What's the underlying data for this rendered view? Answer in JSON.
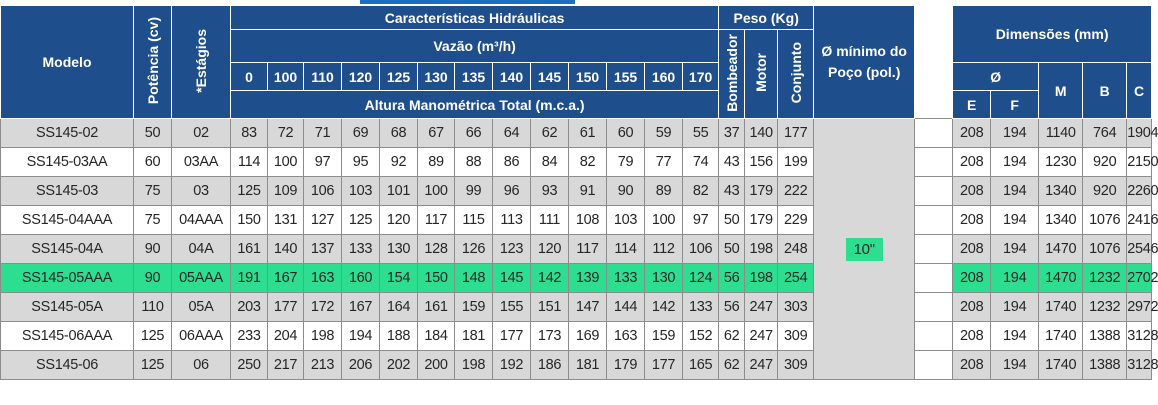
{
  "header": {
    "modelo": "Modelo",
    "potencia": "Potência (cv)",
    "estagios": "*Estágios",
    "hidraulicas": "Características Hidráulicas",
    "vazao": "Vazão (m³/h)",
    "altura": "Altura Manométrica Total (m.c.a.)",
    "flows": [
      "0",
      "100",
      "110",
      "120",
      "125",
      "130",
      "135",
      "140",
      "145",
      "150",
      "155",
      "160",
      "170"
    ],
    "peso": "Peso (Kg)",
    "bombeador": "Bombeador",
    "motor": "Motor",
    "conjunto": "Conjunto",
    "poco": "Ø mínimo do Poço (pol.)",
    "dimensoes": "Dimensões (mm)",
    "diam": "Ø",
    "e": "E",
    "f": "F",
    "m": "M",
    "b": "B",
    "c": "C"
  },
  "poco_value": "10\"",
  "highlight_row": 5,
  "rows": [
    {
      "modelo": "SS145-02",
      "potencia": "50",
      "estagios": "02",
      "altura": [
        "83",
        "72",
        "71",
        "69",
        "68",
        "67",
        "66",
        "64",
        "62",
        "61",
        "60",
        "59",
        "55"
      ],
      "bombeador": "37",
      "motor": "140",
      "conjunto": "177",
      "e": "208",
      "f": "194",
      "m": "1140",
      "b": "764",
      "c": "1904"
    },
    {
      "modelo": "SS145-03AA",
      "potencia": "60",
      "estagios": "03AA",
      "altura": [
        "114",
        "100",
        "97",
        "95",
        "92",
        "89",
        "88",
        "86",
        "84",
        "82",
        "79",
        "77",
        "74"
      ],
      "bombeador": "43",
      "motor": "156",
      "conjunto": "199",
      "e": "208",
      "f": "194",
      "m": "1230",
      "b": "920",
      "c": "2150"
    },
    {
      "modelo": "SS145-03",
      "potencia": "75",
      "estagios": "03",
      "altura": [
        "125",
        "109",
        "106",
        "103",
        "101",
        "100",
        "99",
        "96",
        "93",
        "91",
        "90",
        "89",
        "82"
      ],
      "bombeador": "43",
      "motor": "179",
      "conjunto": "222",
      "e": "208",
      "f": "194",
      "m": "1340",
      "b": "920",
      "c": "2260"
    },
    {
      "modelo": "SS145-04AAA",
      "potencia": "75",
      "estagios": "04AAA",
      "altura": [
        "150",
        "131",
        "127",
        "125",
        "120",
        "117",
        "115",
        "113",
        "111",
        "108",
        "103",
        "100",
        "97"
      ],
      "bombeador": "50",
      "motor": "179",
      "conjunto": "229",
      "e": "208",
      "f": "194",
      "m": "1340",
      "b": "1076",
      "c": "2416"
    },
    {
      "modelo": "SS145-04A",
      "potencia": "90",
      "estagios": "04A",
      "altura": [
        "161",
        "140",
        "137",
        "133",
        "130",
        "128",
        "126",
        "123",
        "120",
        "117",
        "114",
        "112",
        "106"
      ],
      "bombeador": "50",
      "motor": "198",
      "conjunto": "248",
      "e": "208",
      "f": "194",
      "m": "1470",
      "b": "1076",
      "c": "2546"
    },
    {
      "modelo": "SS145-05AAA",
      "potencia": "90",
      "estagios": "05AAA",
      "altura": [
        "191",
        "167",
        "163",
        "160",
        "154",
        "150",
        "148",
        "145",
        "142",
        "139",
        "133",
        "130",
        "124"
      ],
      "bombeador": "56",
      "motor": "198",
      "conjunto": "254",
      "e": "208",
      "f": "194",
      "m": "1470",
      "b": "1232",
      "c": "2702"
    },
    {
      "modelo": "SS145-05A",
      "potencia": "110",
      "estagios": "05A",
      "altura": [
        "203",
        "177",
        "172",
        "167",
        "164",
        "161",
        "159",
        "155",
        "151",
        "147",
        "144",
        "142",
        "133"
      ],
      "bombeador": "56",
      "motor": "247",
      "conjunto": "303",
      "e": "208",
      "f": "194",
      "m": "1740",
      "b": "1232",
      "c": "2972"
    },
    {
      "modelo": "SS145-06AAA",
      "potencia": "125",
      "estagios": "06AAA",
      "altura": [
        "233",
        "204",
        "198",
        "194",
        "188",
        "184",
        "181",
        "177",
        "173",
        "169",
        "163",
        "159",
        "152"
      ],
      "bombeador": "62",
      "motor": "247",
      "conjunto": "309",
      "e": "208",
      "f": "194",
      "m": "1740",
      "b": "1388",
      "c": "3128"
    },
    {
      "modelo": "SS145-06",
      "potencia": "125",
      "estagios": "06",
      "altura": [
        "250",
        "217",
        "213",
        "206",
        "202",
        "200",
        "198",
        "192",
        "186",
        "181",
        "179",
        "177",
        "165"
      ],
      "bombeador": "62",
      "motor": "247",
      "conjunto": "309",
      "e": "208",
      "f": "194",
      "m": "1740",
      "b": "1388",
      "c": "3128"
    }
  ]
}
